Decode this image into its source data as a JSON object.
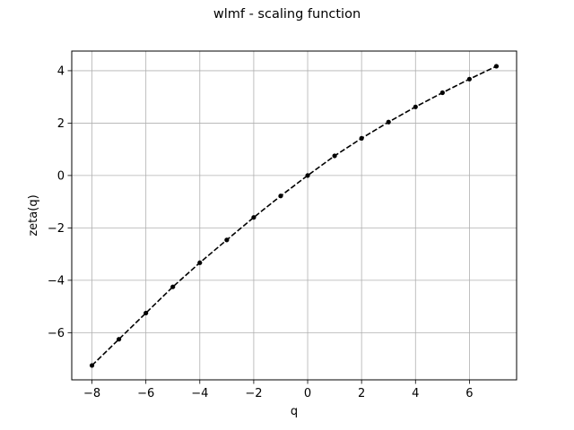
{
  "chart_data": {
    "type": "line",
    "title": "wlmf - scaling function",
    "xlabel": "q",
    "ylabel": "zeta(q)",
    "xlim": [
      -8.75,
      7.75
    ],
    "ylim": [
      -7.8,
      4.75
    ],
    "xticks": [
      -8,
      -6,
      -4,
      -2,
      0,
      2,
      4,
      6
    ],
    "yticks": [
      -6,
      -4,
      -2,
      0,
      2,
      4
    ],
    "xtick_labels": [
      "−8",
      "−6",
      "−4",
      "−2",
      "0",
      "2",
      "4",
      "6"
    ],
    "ytick_labels": [
      "−6",
      "−4",
      "−2",
      "0",
      "2",
      "4"
    ],
    "grid": true,
    "series": [
      {
        "color": "#000000",
        "line_style": "dashed",
        "marker": "dot",
        "x": [
          -8,
          -7,
          -6,
          -5,
          -4,
          -3,
          -2,
          -1,
          0,
          1,
          2,
          3,
          4,
          5,
          6,
          7
        ],
        "y": [
          -7.25,
          -6.25,
          -5.25,
          -4.25,
          -3.33,
          -2.46,
          -1.6,
          -0.78,
          0,
          0.75,
          1.42,
          2.04,
          2.62,
          3.16,
          3.68,
          4.17
        ]
      }
    ]
  }
}
